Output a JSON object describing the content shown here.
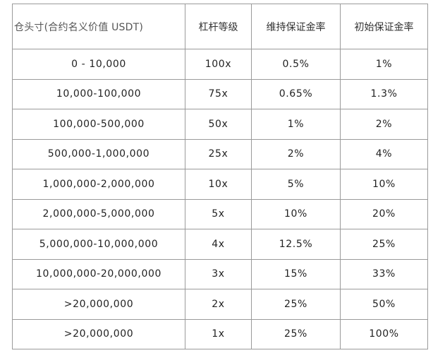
{
  "table": {
    "headers": [
      "仓头寸(合约名义价值 USDT)",
      "杠杆等级",
      "维持保证金率",
      "初始保证金率"
    ],
    "rows": [
      [
        "0 - 10,000",
        "100x",
        "0.5%",
        "1%"
      ],
      [
        "10,000-100,000",
        "75x",
        "0.65%",
        "1.3%"
      ],
      [
        "100,000-500,000",
        "50x",
        "1%",
        "2%"
      ],
      [
        "500,000-1,000,000",
        "25x",
        "2%",
        "4%"
      ],
      [
        "1,000,000-2,000,000",
        "10x",
        "5%",
        "10%"
      ],
      [
        "2,000,000-5,000,000",
        "5x",
        "10%",
        "20%"
      ],
      [
        "5,000,000-10,000,000",
        "4x",
        "12.5%",
        "25%"
      ],
      [
        "10,000,000-20,000,000",
        "3x",
        "15%",
        "33%"
      ],
      [
        ">20,000,000",
        "2x",
        "25%",
        "50%"
      ],
      [
        ">20,000,000",
        "1x",
        "25%",
        "100%"
      ]
    ]
  }
}
